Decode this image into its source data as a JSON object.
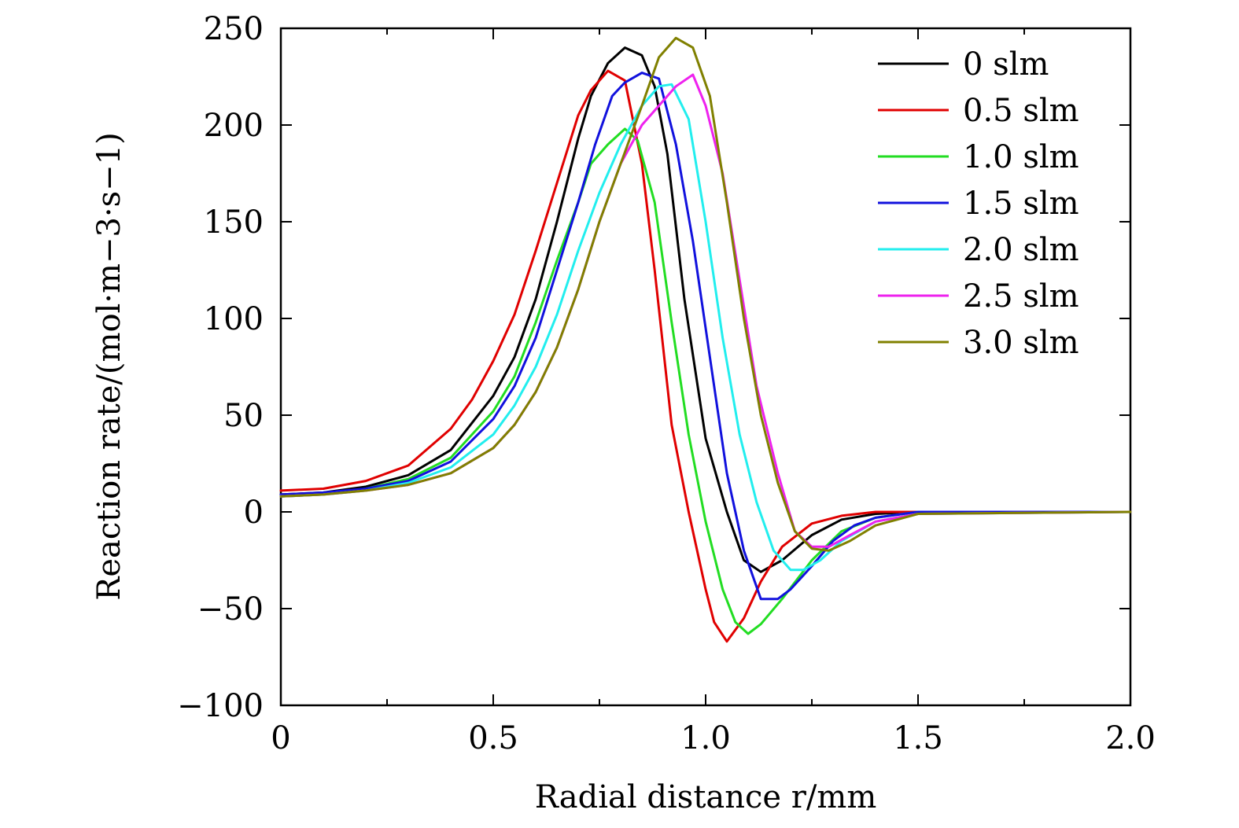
{
  "chart_data": {
    "type": "line",
    "xlabel": "Radial distance r/mm",
    "ylabel": "Reaction rate/(mol·m−3·s−1)",
    "xlim": [
      0,
      2.0
    ],
    "ylim": [
      -100,
      250
    ],
    "x_ticks": [
      0,
      0.5,
      1.0,
      1.5,
      2.0
    ],
    "x_tick_labels": [
      "0",
      "0.5",
      "1.0",
      "1.5",
      "2.0"
    ],
    "y_ticks": [
      -100,
      -50,
      0,
      50,
      100,
      150,
      200,
      250
    ],
    "y_tick_labels": [
      "−100",
      "−50",
      "0",
      "50",
      "100",
      "150",
      "200",
      "250"
    ],
    "grid": false,
    "legend_position": "top-right",
    "series": [
      {
        "name": "0 slm",
        "color": "#000000",
        "x": [
          0,
          0.1,
          0.2,
          0.3,
          0.4,
          0.5,
          0.55,
          0.6,
          0.65,
          0.7,
          0.73,
          0.77,
          0.81,
          0.85,
          0.88,
          0.91,
          0.95,
          1.0,
          1.05,
          1.09,
          1.13,
          1.18,
          1.25,
          1.32,
          1.4,
          1.5,
          1.6,
          2.0
        ],
        "y": [
          9,
          10,
          13,
          19,
          32,
          60,
          80,
          110,
          150,
          193,
          215,
          232,
          240,
          236,
          220,
          185,
          110,
          38,
          0,
          -25,
          -31,
          -25,
          -12,
          -4,
          -1,
          0,
          0,
          0
        ]
      },
      {
        "name": "0.5 slm",
        "color": "#e00000",
        "x": [
          0,
          0.1,
          0.2,
          0.3,
          0.4,
          0.45,
          0.5,
          0.55,
          0.6,
          0.65,
          0.7,
          0.73,
          0.77,
          0.81,
          0.85,
          0.88,
          0.92,
          0.96,
          1.0,
          1.02,
          1.05,
          1.09,
          1.13,
          1.18,
          1.25,
          1.32,
          1.4,
          1.5,
          2.0
        ],
        "y": [
          11,
          12,
          16,
          24,
          43,
          58,
          78,
          102,
          135,
          170,
          205,
          218,
          228,
          223,
          180,
          125,
          45,
          0,
          -40,
          -57,
          -67,
          -55,
          -36,
          -18,
          -6,
          -2,
          0,
          0,
          0
        ]
      },
      {
        "name": "1.0 slm",
        "color": "#22dd22",
        "x": [
          0,
          0.1,
          0.2,
          0.3,
          0.4,
          0.5,
          0.55,
          0.6,
          0.65,
          0.7,
          0.73,
          0.77,
          0.81,
          0.84,
          0.88,
          0.92,
          0.96,
          1.0,
          1.04,
          1.07,
          1.1,
          1.13,
          1.18,
          1.25,
          1.32,
          1.4,
          1.5,
          2.0
        ],
        "y": [
          8,
          9,
          12,
          17,
          28,
          52,
          70,
          98,
          130,
          160,
          180,
          190,
          198,
          192,
          160,
          98,
          40,
          -5,
          -40,
          -57,
          -63,
          -58,
          -45,
          -25,
          -10,
          -3,
          0,
          0
        ]
      },
      {
        "name": "1.5 slm",
        "color": "#1111dd",
        "x": [
          0,
          0.1,
          0.2,
          0.3,
          0.4,
          0.5,
          0.55,
          0.6,
          0.65,
          0.7,
          0.74,
          0.78,
          0.81,
          0.85,
          0.89,
          0.93,
          0.97,
          1.01,
          1.05,
          1.09,
          1.13,
          1.17,
          1.2,
          1.25,
          1.3,
          1.35,
          1.4,
          1.5,
          2.0
        ],
        "y": [
          9,
          10,
          12,
          16,
          26,
          48,
          65,
          90,
          125,
          160,
          190,
          215,
          222,
          227,
          224,
          190,
          140,
          80,
          20,
          -20,
          -45,
          -45,
          -40,
          -28,
          -15,
          -7,
          -3,
          0,
          0
        ]
      },
      {
        "name": "2.0 slm",
        "color": "#22eeee",
        "x": [
          0,
          0.1,
          0.2,
          0.3,
          0.4,
          0.5,
          0.55,
          0.6,
          0.65,
          0.7,
          0.75,
          0.8,
          0.85,
          0.89,
          0.92,
          0.96,
          1.0,
          1.04,
          1.08,
          1.12,
          1.16,
          1.2,
          1.23,
          1.27,
          1.32,
          1.4,
          1.5,
          2.0
        ],
        "y": [
          8,
          9,
          11,
          15,
          23,
          40,
          55,
          75,
          102,
          135,
          165,
          190,
          210,
          220,
          221,
          203,
          150,
          90,
          40,
          5,
          -20,
          -30,
          -30,
          -25,
          -15,
          -5,
          -1,
          0
        ]
      },
      {
        "name": "2.5 slm",
        "color": "#ee22ee",
        "x": [
          0,
          0.1,
          0.2,
          0.3,
          0.4,
          0.5,
          0.55,
          0.6,
          0.65,
          0.7,
          0.75,
          0.8,
          0.85,
          0.89,
          0.93,
          0.97,
          1.0,
          1.04,
          1.08,
          1.12,
          1.17,
          1.21,
          1.25,
          1.29,
          1.34,
          1.4,
          1.5,
          2.0
        ],
        "y": [
          8,
          9,
          11,
          14,
          20,
          33,
          45,
          62,
          85,
          115,
          150,
          180,
          200,
          210,
          220,
          226,
          210,
          175,
          120,
          65,
          20,
          -10,
          -18,
          -18,
          -12,
          -5,
          -1,
          0
        ]
      },
      {
        "name": "3.0 slm",
        "color": "#808000",
        "x": [
          0,
          0.1,
          0.2,
          0.3,
          0.4,
          0.5,
          0.55,
          0.6,
          0.65,
          0.7,
          0.75,
          0.8,
          0.85,
          0.89,
          0.93,
          0.97,
          1.01,
          1.05,
          1.09,
          1.13,
          1.17,
          1.21,
          1.25,
          1.29,
          1.34,
          1.4,
          1.5,
          2.0
        ],
        "y": [
          8,
          9,
          11,
          14,
          20,
          33,
          45,
          62,
          85,
          115,
          150,
          180,
          210,
          235,
          245,
          240,
          215,
          160,
          100,
          50,
          15,
          -10,
          -19,
          -20,
          -15,
          -7,
          -1,
          0
        ]
      }
    ]
  }
}
